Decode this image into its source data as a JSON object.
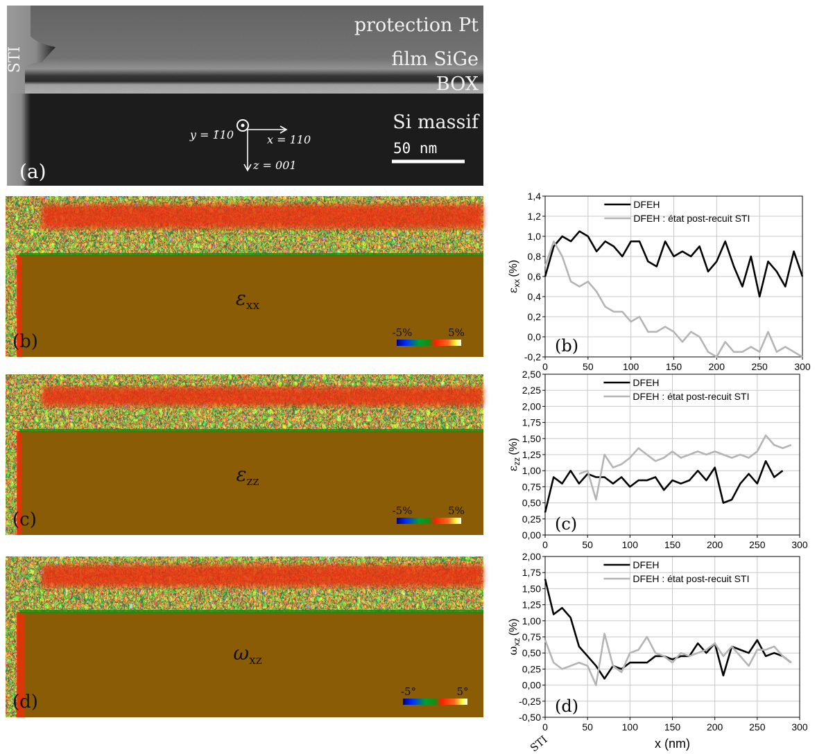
{
  "tem_image": {
    "layers": [
      "protection Pt",
      "film SiGe",
      "BOX",
      "Si massif"
    ],
    "sti": "STI",
    "scale_bar": "50 nm",
    "axes": [
      "y = 1̄10",
      "x = 110",
      "z = 001"
    ],
    "panel": "(a)"
  },
  "maps": [
    {
      "symbol": "ε",
      "subscript": "xx",
      "scale_min": "-5%",
      "scale_max": "5%",
      "panel": "(b)"
    },
    {
      "symbol": "ε",
      "subscript": "zz",
      "scale_min": "-5%",
      "scale_max": "5%",
      "panel": "(c)"
    },
    {
      "symbol": "ω",
      "subscript": "xz",
      "scale_min": "-5°",
      "scale_max": "5°",
      "panel": "(d)"
    }
  ],
  "chart_data": [
    {
      "type": "line",
      "ylabel": {
        "symbol": "ε",
        "subscript": "xx",
        "unit": "(%)"
      },
      "annotation": "(b)",
      "x": [
        0,
        10,
        20,
        30,
        40,
        50,
        60,
        70,
        80,
        90,
        100,
        110,
        120,
        130,
        140,
        150,
        160,
        170,
        180,
        190,
        200,
        210,
        220,
        230,
        240,
        250,
        260,
        270,
        280,
        290,
        300
      ],
      "series": [
        {
          "name": "DFEH",
          "color": "#000000",
          "values": [
            0.6,
            0.9,
            1.0,
            0.95,
            1.05,
            1.0,
            0.85,
            0.95,
            0.9,
            0.8,
            0.95,
            0.95,
            0.75,
            0.7,
            0.95,
            0.8,
            0.85,
            0.8,
            0.9,
            0.65,
            0.75,
            0.95,
            0.7,
            0.5,
            0.8,
            0.4,
            0.75,
            0.65,
            0.5,
            0.85,
            0.6
          ]
        },
        {
          "name": "DFEH : état post-recuit STI",
          "color": "#b4b4b4",
          "values": [
            0.7,
            0.95,
            0.8,
            0.55,
            0.5,
            0.55,
            0.45,
            0.3,
            0.25,
            0.25,
            0.15,
            0.2,
            0.05,
            0.05,
            0.1,
            0.05,
            -0.05,
            0.05,
            0.0,
            -0.15,
            -0.2,
            -0.05,
            -0.15,
            -0.15,
            -0.1,
            -0.15,
            0.05,
            -0.15,
            -0.1,
            -0.15,
            -0.2
          ]
        }
      ],
      "xlim": [
        0,
        300
      ],
      "xticks": [
        0,
        50,
        100,
        150,
        200,
        250,
        300
      ],
      "ylim": [
        -0.2,
        1.4
      ],
      "yticks": [
        {
          "value": -0.2,
          "label": "-0,2"
        },
        {
          "value": 0,
          "label": "0,0"
        },
        {
          "value": 0.2,
          "label": "0,2"
        },
        {
          "value": 0.4,
          "label": "0,4"
        },
        {
          "value": 0.6,
          "label": "0,6"
        },
        {
          "value": 0.8,
          "label": "0,8"
        },
        {
          "value": 1.0,
          "label": "1,0"
        },
        {
          "value": 1.2,
          "label": "1,2"
        },
        {
          "value": 1.4,
          "label": "1,4"
        }
      ],
      "grid": true,
      "legend": "upper center"
    },
    {
      "type": "line",
      "ylabel": {
        "symbol": "ε",
        "subscript": "zz",
        "unit": "(%)"
      },
      "annotation": "(c)",
      "x": [
        0,
        10,
        20,
        30,
        40,
        50,
        60,
        70,
        80,
        90,
        100,
        110,
        120,
        130,
        140,
        150,
        160,
        170,
        180,
        190,
        200,
        210,
        220,
        230,
        240,
        250,
        260,
        270,
        280,
        290,
        300
      ],
      "series": [
        {
          "name": "DFEH",
          "color": "#000000",
          "values": [
            0.35,
            0.9,
            0.8,
            1.0,
            0.8,
            0.95,
            0.9,
            0.9,
            0.8,
            0.9,
            0.75,
            0.85,
            0.85,
            0.9,
            0.7,
            0.85,
            0.8,
            0.85,
            1.0,
            0.85,
            1.05,
            0.5,
            0.55,
            0.8,
            0.95,
            0.8,
            1.15,
            0.9,
            1.0,
            null,
            null
          ]
        },
        {
          "name": "DFEH : état post-recuit STI",
          "color": "#b4b4b4",
          "values": [
            null,
            null,
            null,
            null,
            0.95,
            1.0,
            0.55,
            1.25,
            1.05,
            1.1,
            1.2,
            1.35,
            1.25,
            1.15,
            1.2,
            1.3,
            1.2,
            1.25,
            1.3,
            1.25,
            1.3,
            1.25,
            1.2,
            1.25,
            1.2,
            1.3,
            1.55,
            1.4,
            1.35,
            1.4,
            null
          ]
        }
      ],
      "xlim": [
        0,
        300
      ],
      "xticks": [
        0,
        50,
        100,
        150,
        200,
        250,
        300
      ],
      "ylim": [
        0,
        2.5
      ],
      "yticks": [
        {
          "value": 0,
          "label": "0,00"
        },
        {
          "value": 0.25,
          "label": "0,25"
        },
        {
          "value": 0.5,
          "label": "0,50"
        },
        {
          "value": 0.75,
          "label": "0,75"
        },
        {
          "value": 1.0,
          "label": "1,00"
        },
        {
          "value": 1.25,
          "label": "1,25"
        },
        {
          "value": 1.5,
          "label": "1,50"
        },
        {
          "value": 1.75,
          "label": "1,75"
        },
        {
          "value": 2.0,
          "label": "2,00"
        },
        {
          "value": 2.25,
          "label": "2,25"
        },
        {
          "value": 2.5,
          "label": "2,50"
        }
      ],
      "grid": true,
      "legend": "upper center"
    },
    {
      "type": "line",
      "ylabel": {
        "symbol": "ω",
        "subscript": "xz",
        "unit": "(%)"
      },
      "annotation": "(d)",
      "xlabel": "x (nm)",
      "x_annotation": "STI",
      "x": [
        0,
        10,
        20,
        30,
        40,
        50,
        60,
        70,
        80,
        90,
        100,
        110,
        120,
        130,
        140,
        150,
        160,
        170,
        180,
        190,
        200,
        210,
        220,
        230,
        240,
        250,
        260,
        270,
        280,
        290,
        300
      ],
      "series": [
        {
          "name": "DFEH",
          "color": "#000000",
          "values": [
            1.65,
            1.1,
            1.2,
            1.05,
            0.6,
            0.45,
            0.3,
            0.1,
            0.3,
            0.25,
            0.35,
            0.35,
            0.35,
            0.45,
            0.45,
            0.4,
            0.45,
            0.45,
            0.65,
            0.5,
            0.65,
            0.15,
            0.6,
            0.55,
            0.5,
            0.7,
            0.45,
            0.5,
            0.45,
            0.35,
            null
          ]
        },
        {
          "name": "DFEH : état post-recuit STI",
          "color": "#b4b4b4",
          "values": [
            0.7,
            0.35,
            0.25,
            0.3,
            0.35,
            0.3,
            0.0,
            0.8,
            0.3,
            0.2,
            0.5,
            0.55,
            0.75,
            0.5,
            0.45,
            0.35,
            0.5,
            0.45,
            0.5,
            0.55,
            0.65,
            0.45,
            0.6,
            0.45,
            0.3,
            0.55,
            0.55,
            0.6,
            0.45,
            0.35,
            null
          ]
        }
      ],
      "xlim": [
        0,
        300
      ],
      "xticks": [
        0,
        50,
        100,
        150,
        200,
        250,
        300
      ],
      "ylim": [
        -0.5,
        2.0
      ],
      "yticks": [
        {
          "value": -0.5,
          "label": "-0,50"
        },
        {
          "value": -0.25,
          "label": "-0,25"
        },
        {
          "value": 0,
          "label": "0,00"
        },
        {
          "value": 0.25,
          "label": "0,25"
        },
        {
          "value": 0.5,
          "label": "0,50"
        },
        {
          "value": 0.75,
          "label": "0,75"
        },
        {
          "value": 1.0,
          "label": "1,00"
        },
        {
          "value": 1.25,
          "label": "1,25"
        },
        {
          "value": 1.5,
          "label": "1,50"
        },
        {
          "value": 1.75,
          "label": "1,75"
        },
        {
          "value": 2.0,
          "label": "2,00"
        }
      ],
      "grid": true,
      "legend": "upper center"
    }
  ]
}
